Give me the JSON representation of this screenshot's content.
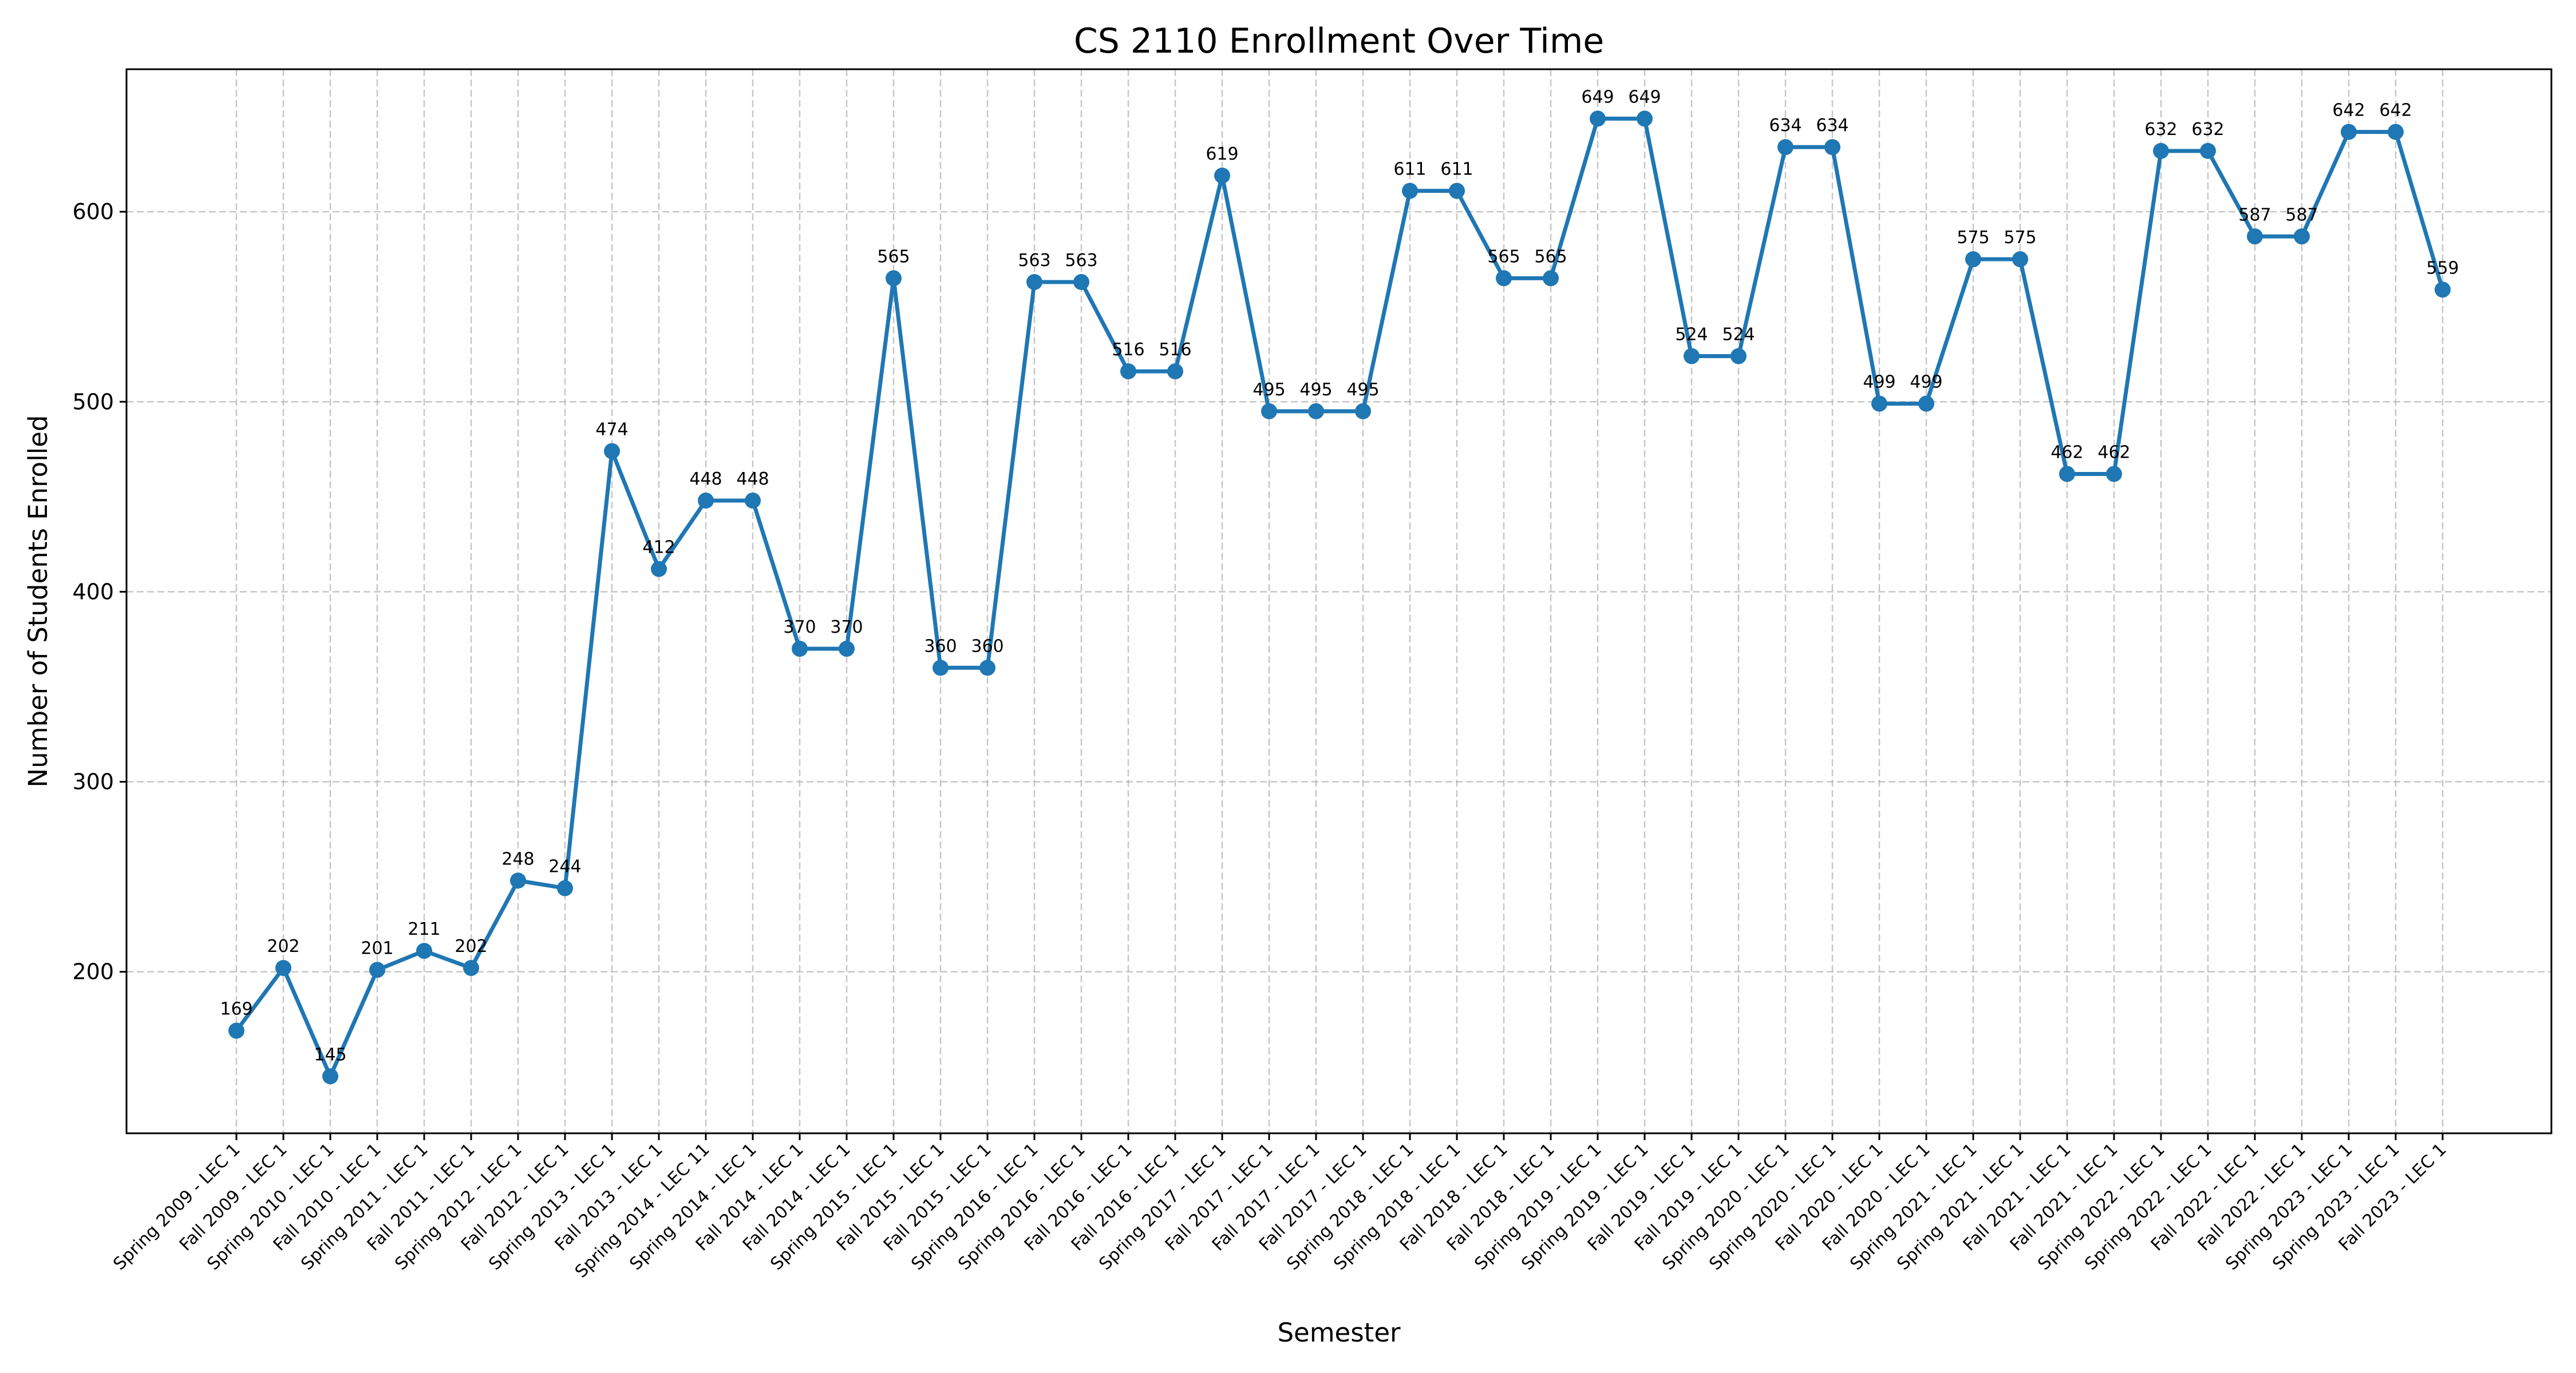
{
  "chart_data": {
    "type": "line",
    "title": "CS  2110 Enrollment Over Time",
    "xlabel": "Semester",
    "ylabel": "Number of Students Enrolled",
    "ylim": [
      115,
      675
    ],
    "yticks": [
      200,
      300,
      400,
      500,
      600
    ],
    "grid": true,
    "color": "#1f77b4",
    "categories": [
      "Spring  2009 - LEC 1",
      "Fall  2009 - LEC 1",
      "Spring  2010 - LEC 1",
      "Fall  2010 - LEC 1",
      "Spring  2011 - LEC 1",
      "Fall  2011 - LEC 1",
      "Spring  2012 - LEC 1",
      "Fall  2012 - LEC 1",
      "Spring  2013 - LEC 1",
      "Fall  2013 - LEC 1",
      "Spring  2014 - LEC 11",
      "Spring  2014 - LEC 1",
      "Fall  2014 - LEC 1",
      "Fall  2014 - LEC 1",
      "Spring  2015 - LEC 1",
      "Fall  2015 - LEC 1",
      "Fall  2015 - LEC 1",
      "Spring  2016 - LEC 1",
      "Spring  2016 - LEC 1",
      "Fall  2016 - LEC 1",
      "Fall  2016 - LEC 1",
      "Spring  2017 - LEC 1",
      "Fall  2017 - LEC 1",
      "Fall  2017 - LEC 1",
      "Fall  2017 - LEC 1",
      "Spring  2018 - LEC 1",
      "Spring  2018 - LEC 1",
      "Fall  2018 - LEC 1",
      "Fall  2018 - LEC 1",
      "Spring  2019 - LEC 1",
      "Spring  2019 - LEC 1",
      "Fall  2019 - LEC 1",
      "Fall  2019 - LEC 1",
      "Spring  2020 - LEC 1",
      "Spring  2020 - LEC 1",
      "Fall  2020 - LEC 1",
      "Fall  2020 - LEC 1",
      "Spring  2021 - LEC 1",
      "Spring  2021 - LEC 1",
      "Fall  2021 - LEC 1",
      "Fall  2021 - LEC 1",
      "Spring  2022 - LEC 1",
      "Spring  2022 - LEC 1",
      "Fall  2022 - LEC 1",
      "Fall  2022 - LEC 1",
      "Spring  2023 - LEC 1",
      "Spring  2023 - LEC 1",
      "Fall  2023 - LEC 1"
    ],
    "values": [
      169,
      202,
      145,
      201,
      211,
      202,
      248,
      244,
      474,
      412,
      448,
      448,
      370,
      370,
      565,
      360,
      360,
      563,
      563,
      516,
      516,
      619,
      495,
      495,
      495,
      611,
      611,
      565,
      565,
      649,
      649,
      524,
      524,
      634,
      634,
      499,
      499,
      575,
      575,
      462,
      462,
      632,
      632,
      587,
      587,
      642,
      642,
      559
    ]
  }
}
